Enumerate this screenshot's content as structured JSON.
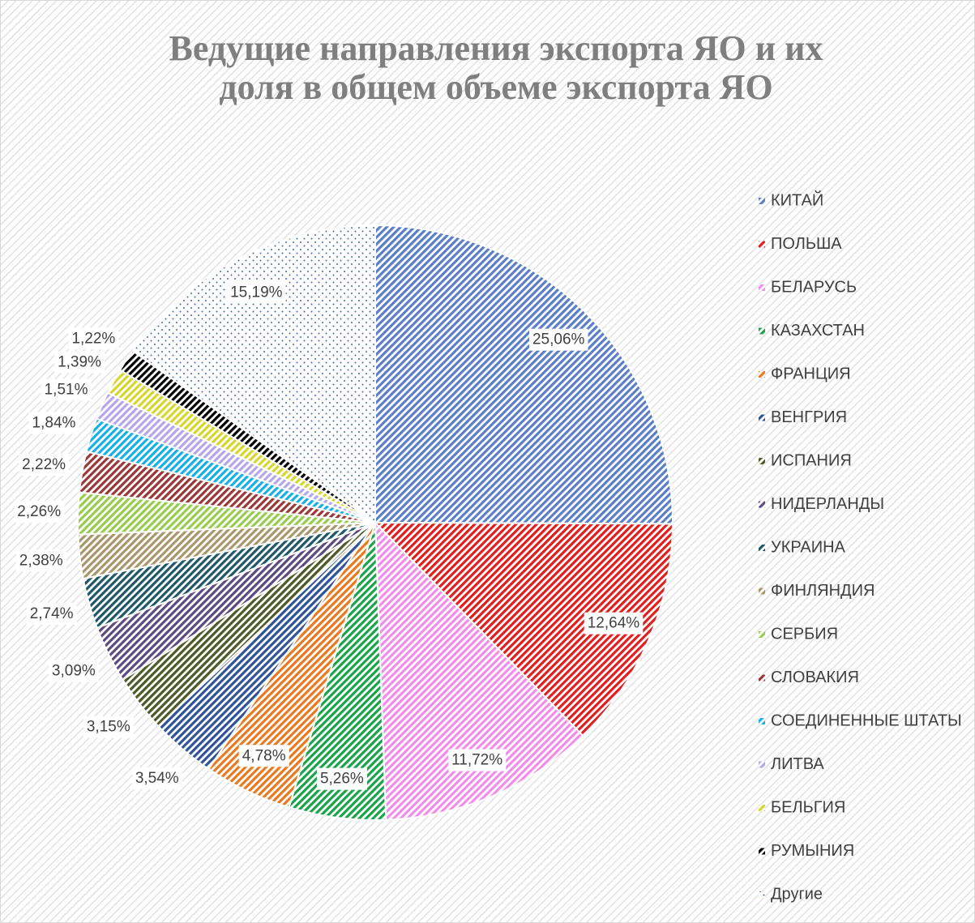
{
  "chart_data": {
    "type": "pie",
    "title": "Ведущие направления экспорта ЯО и их доля в общем объеме экспорта ЯО",
    "categories": [
      "КИТАЙ",
      "ПОЛЬША",
      "БЕЛАРУСЬ",
      "КАЗАХСТАН",
      "ФРАНЦИЯ",
      "ВЕНГРИЯ",
      "ИСПАНИЯ",
      "НИДЕРЛАНДЫ",
      "УКРАИНА",
      "ФИНЛЯНДИЯ",
      "СЕРБИЯ",
      "СЛОВАКИЯ",
      "СОЕДИНЕННЫЕ ШТАТЫ",
      "ЛИТВА",
      "БЕЛЬГИЯ",
      "РУМЫНИЯ",
      "Другие"
    ],
    "values": [
      25.06,
      12.64,
      11.72,
      5.26,
      4.78,
      3.54,
      3.15,
      3.09,
      2.74,
      2.38,
      2.26,
      2.22,
      1.84,
      1.51,
      1.39,
      1.22,
      15.19
    ],
    "value_labels": [
      "25,06%",
      "12,64%",
      "11,72%",
      "5,26%",
      "4,78%",
      "3,54%",
      "3,15%",
      "3,09%",
      "2,74%",
      "2,38%",
      "2,26%",
      "2,22%",
      "1,84%",
      "1,51%",
      "1,39%",
      "1,22%",
      "15,19%"
    ],
    "colors": [
      "#5a7fc6",
      "#e01e1e",
      "#f28ceb",
      "#1aa34a",
      "#e8791e",
      "#2e5496",
      "#4d5a26",
      "#5b4a7e",
      "#1e5868",
      "#a8976a",
      "#98cc4e",
      "#993838",
      "#18aee6",
      "#b5a6ea",
      "#d6d62c",
      "#000000",
      "#4a6aa0"
    ],
    "patterns": [
      "hatch",
      "hatch",
      "hatch",
      "hatch",
      "hatch",
      "hatch",
      "hatch",
      "hatch",
      "hatch",
      "hatch",
      "hatch",
      "hatch",
      "hatch",
      "hatch",
      "hatch",
      "hatch",
      "dots"
    ],
    "legend": "right"
  }
}
